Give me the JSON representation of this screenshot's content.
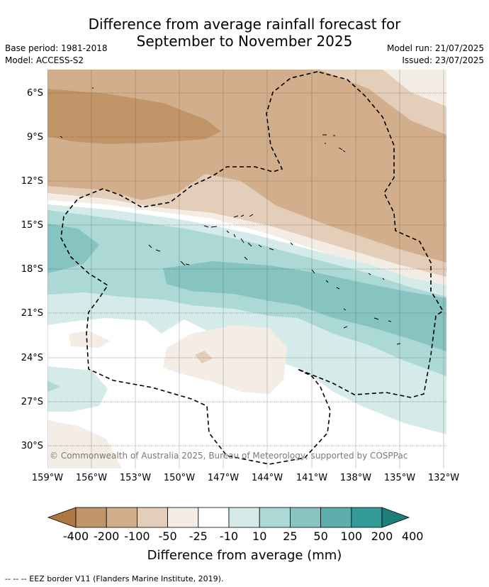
{
  "title": {
    "line1": "Difference from average rainfall forecast for",
    "line2": "September to November 2025"
  },
  "meta_left": {
    "base_period": "Base period: 1981-2018",
    "model": "Model: ACCESS-S2"
  },
  "meta_right": {
    "model_run": "Model run: 21/07/2025",
    "issued": "Issued: 23/07/2025"
  },
  "map": {
    "lat_labels": [
      "6°S",
      "9°S",
      "12°S",
      "15°S",
      "18°S",
      "21°S",
      "24°S",
      "27°S",
      "30°S"
    ],
    "lon_labels": [
      "159°W",
      "156°W",
      "153°W",
      "150°W",
      "147°W",
      "144°W",
      "141°W",
      "138°W",
      "135°W",
      "132°W"
    ],
    "copyright": "© Commonwealth of Australia 2025, Bureau of Meteorology, supported by COSPPac",
    "colors": {
      "dry_strong": "#c29569",
      "dry": "#d2ae8c",
      "dry_light": "#e4ceb9",
      "dry_faint": "#f4ede5",
      "neutral": "#ffffff",
      "wet_faint": "#d4ebea",
      "wet_light": "#acd8d6",
      "wet": "#86c3c1"
    }
  },
  "legend": {
    "labels": [
      "-400",
      "-200",
      "-100",
      "-50",
      "-25",
      "-10",
      "10",
      "25",
      "50",
      "100",
      "200",
      "400"
    ],
    "colors": [
      "#ae7842",
      "#c29569",
      "#d2ae8c",
      "#e4ceb9",
      "#f4ede5",
      "#ffffff",
      "#d4ebea",
      "#acd8d6",
      "#86c3c1",
      "#5eaeab",
      "#329b98",
      "#1d7f7c"
    ],
    "title": "Difference from average (mm)"
  },
  "footnote": "--  --  -- EEZ border V11 (Flanders Marine Institute, 2019)."
}
